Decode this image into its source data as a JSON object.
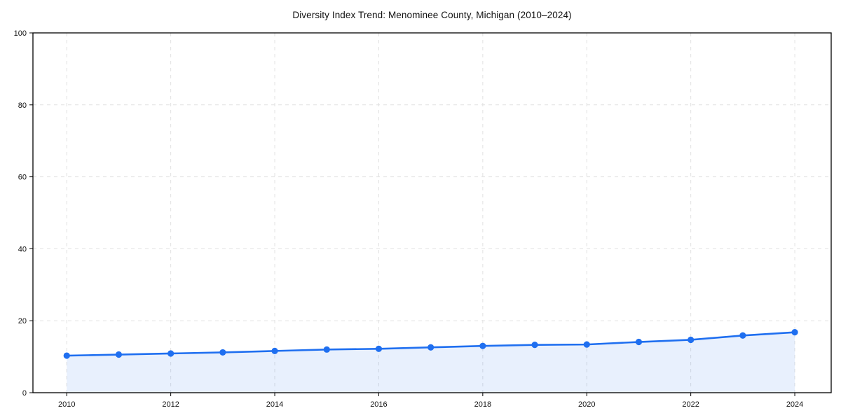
{
  "page": {
    "background": "#ffffff"
  },
  "chart_data": {
    "type": "line",
    "title": "Diversity Index Trend: Menominee County, Michigan (2010–2024)",
    "xlabel": "",
    "ylabel": "",
    "x": [
      2010,
      2011,
      2012,
      2013,
      2014,
      2015,
      2016,
      2017,
      2018,
      2019,
      2020,
      2021,
      2022,
      2023,
      2024
    ],
    "series": [
      {
        "name": "Diversity Index",
        "values": [
          10.3,
          10.6,
          10.9,
          11.2,
          11.6,
          12.0,
          12.2,
          12.6,
          13.0,
          13.3,
          13.4,
          14.1,
          14.7,
          15.9,
          16.8
        ]
      }
    ],
    "xlim": [
      2009.35,
      2024.7
    ],
    "ylim": [
      0,
      100
    ],
    "xticks": [
      2010,
      2012,
      2014,
      2016,
      2018,
      2020,
      2022,
      2024
    ],
    "yticks": [
      0,
      20,
      40,
      60,
      80,
      100
    ],
    "grid": true,
    "grid_style": "dashed",
    "grid_color": "#e1e1e1",
    "legend": "none",
    "area_fill": true,
    "line_color": "#1f6ff0",
    "fill_color": "rgba(31,111,240,0.10)",
    "marker": "circle",
    "axis_color": "#000000",
    "tick_label_color": "#111111"
  }
}
